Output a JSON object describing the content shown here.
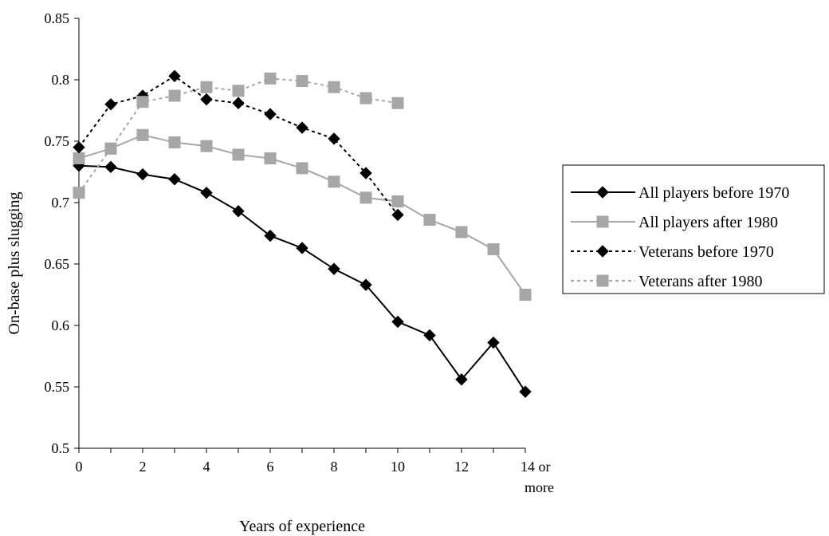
{
  "chart_data": {
    "type": "line",
    "xlabel": "Years of experience",
    "ylabel": "On-base plus slugging",
    "ylim": [
      0.5,
      0.85
    ],
    "yticks": [
      "0.5",
      "0.55",
      "0.6",
      "0.65",
      "0.7",
      "0.75",
      "0.8",
      "0.85"
    ],
    "xticks": [
      {
        "x": 0,
        "lines": [
          "0"
        ]
      },
      {
        "x": 2,
        "lines": [
          "2"
        ]
      },
      {
        "x": 4,
        "lines": [
          "4"
        ]
      },
      {
        "x": 6,
        "lines": [
          "6"
        ]
      },
      {
        "x": 8,
        "lines": [
          "8"
        ]
      },
      {
        "x": 10,
        "lines": [
          "10"
        ]
      },
      {
        "x": 12,
        "lines": [
          "12"
        ]
      },
      {
        "x": 14,
        "lines": [
          "14 or",
          "more"
        ]
      }
    ],
    "xlim": [
      0,
      14
    ],
    "legend_position": "right",
    "grid": false,
    "series": [
      {
        "name": "All players before 1970",
        "color": "#000000",
        "dash": "solid",
        "marker": "diamond",
        "x": [
          0,
          1,
          2,
          3,
          4,
          5,
          6,
          7,
          8,
          9,
          10,
          11,
          12,
          13,
          14
        ],
        "values": [
          0.73,
          0.729,
          0.723,
          0.719,
          0.708,
          0.693,
          0.673,
          0.663,
          0.646,
          0.633,
          0.603,
          0.592,
          0.556,
          0.586,
          0.546
        ]
      },
      {
        "name": "All players after 1980",
        "color": "#a6a6a6",
        "dash": "solid",
        "marker": "square",
        "x": [
          0,
          1,
          2,
          3,
          4,
          5,
          6,
          7,
          8,
          9,
          10,
          11,
          12,
          13,
          14
        ],
        "values": [
          0.736,
          0.744,
          0.755,
          0.749,
          0.746,
          0.739,
          0.736,
          0.728,
          0.717,
          0.704,
          0.701,
          0.686,
          0.676,
          0.662,
          0.625
        ]
      },
      {
        "name": "Veterans before 1970",
        "color": "#000000",
        "dash": "dotted",
        "marker": "diamond",
        "x": [
          0,
          1,
          2,
          3,
          4,
          5,
          6,
          7,
          8,
          9,
          10
        ],
        "values": [
          0.745,
          0.78,
          0.787,
          0.803,
          0.784,
          0.781,
          0.772,
          0.761,
          0.752,
          0.724,
          0.69
        ]
      },
      {
        "name": "Veterans after 1980",
        "color": "#a6a6a6",
        "dash": "dotted",
        "marker": "square",
        "x": [
          0,
          1,
          2,
          3,
          4,
          5,
          6,
          7,
          8,
          9,
          10
        ],
        "values": [
          0.708,
          0.744,
          0.782,
          0.787,
          0.794,
          0.791,
          0.801,
          0.799,
          0.794,
          0.785,
          0.781
        ]
      }
    ]
  }
}
